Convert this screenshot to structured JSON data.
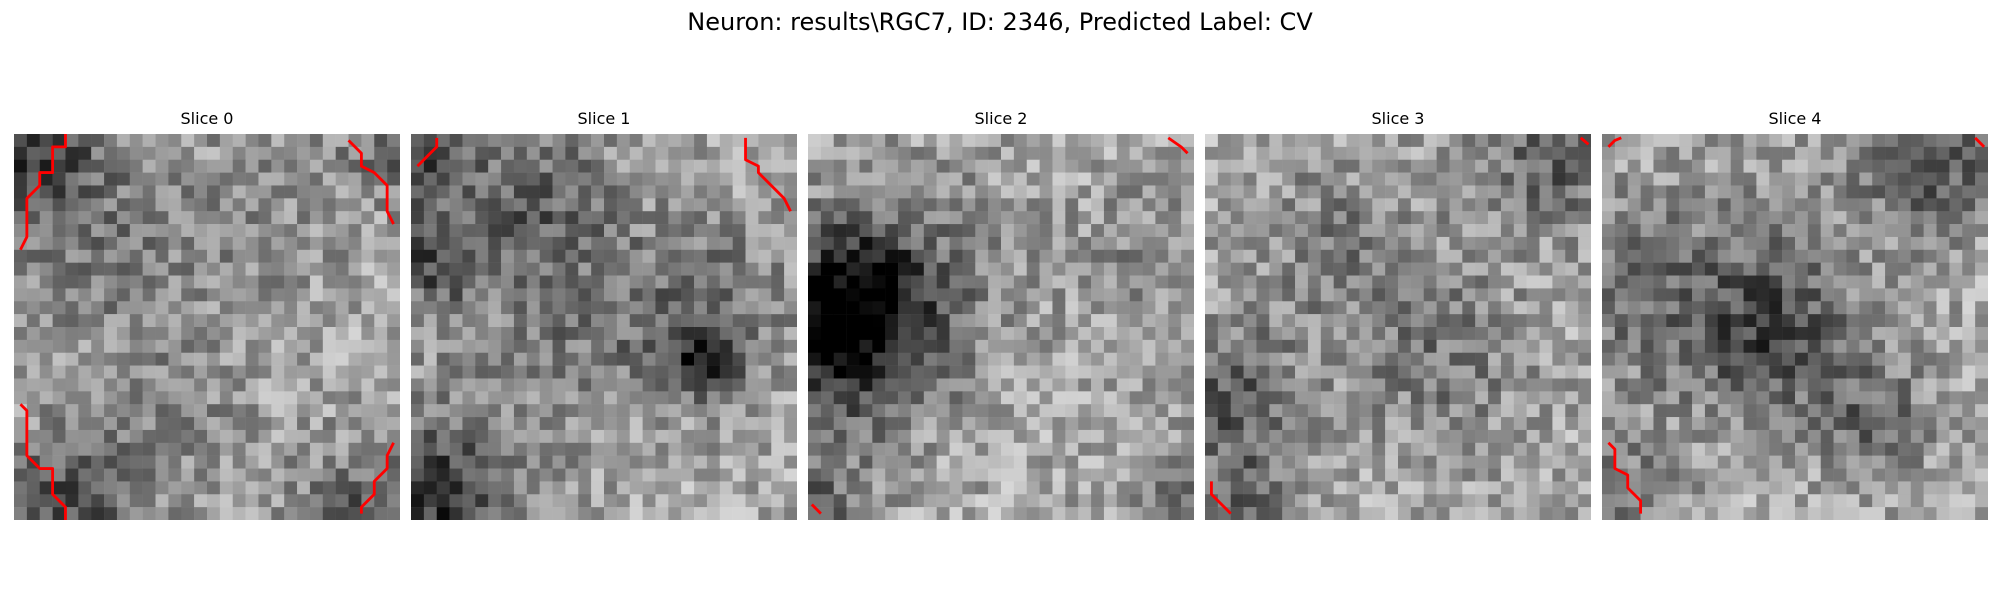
{
  "title": "Neuron: results\\RGC7, ID: 2346, Predicted Label: CV",
  "panels": [
    {
      "label": "Slice 0"
    },
    {
      "label": "Slice 1"
    },
    {
      "label": "Slice 2"
    },
    {
      "label": "Slice 3"
    },
    {
      "label": "Slice 4"
    }
  ],
  "contour_color": "#ff0000",
  "colormap": "gray"
}
